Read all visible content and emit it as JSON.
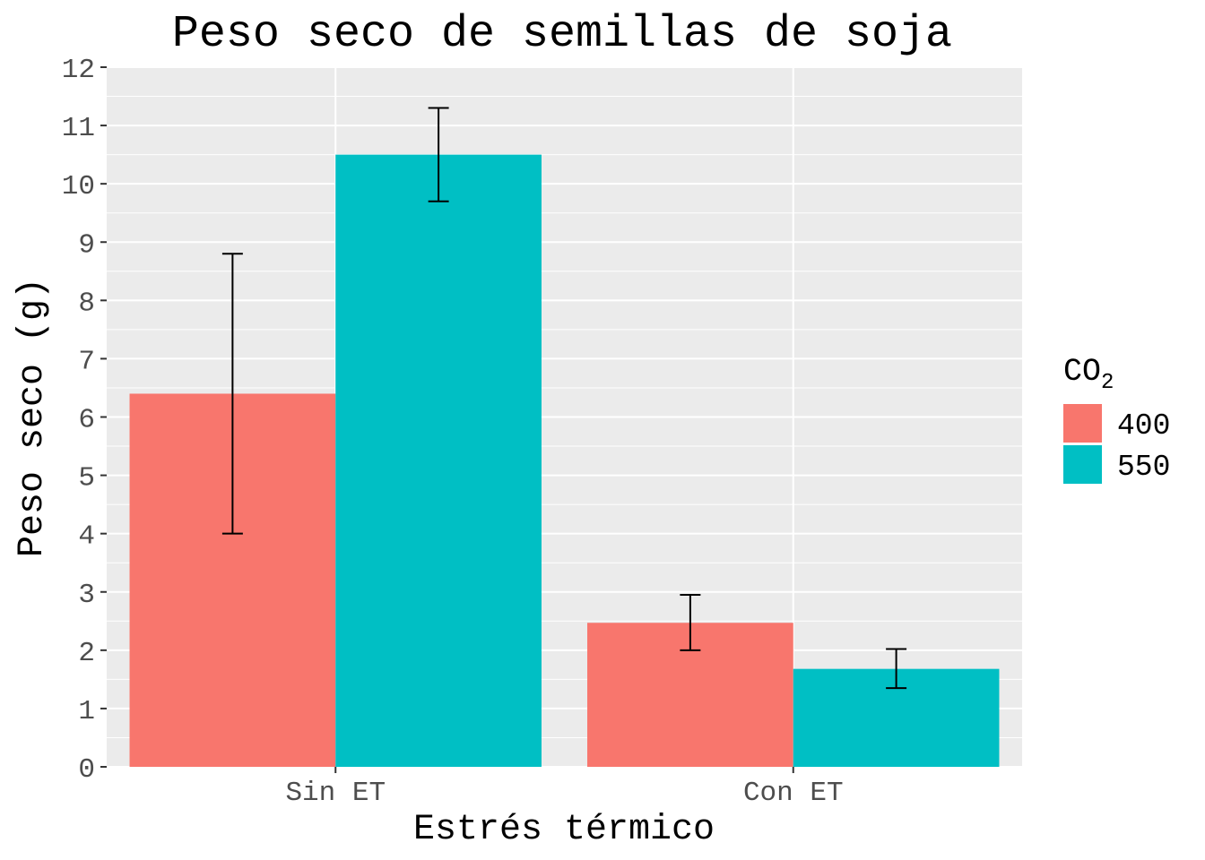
{
  "chart_data": {
    "type": "bar",
    "title": "Peso seco de semillas de soja",
    "xlabel": "Estrés térmico",
    "ylabel": "Peso seco (g)",
    "categories": [
      "Sin ET",
      "Con ET"
    ],
    "ylim": [
      0,
      12
    ],
    "yticks": [
      0,
      1,
      2,
      3,
      4,
      5,
      6,
      7,
      8,
      9,
      10,
      11,
      12
    ],
    "grid": true,
    "legend": {
      "title_main": "CO",
      "title_sub": "2",
      "placement": "right"
    },
    "series": [
      {
        "name": "400",
        "color": "#F8766D",
        "values": [
          6.4,
          2.47
        ],
        "error_low": [
          4.0,
          2.0
        ],
        "error_high": [
          8.8,
          2.95
        ]
      },
      {
        "name": "550",
        "color": "#00BFC4",
        "values": [
          10.5,
          1.68
        ],
        "error_low": [
          9.7,
          1.35
        ],
        "error_high": [
          11.3,
          2.02
        ]
      }
    ]
  }
}
